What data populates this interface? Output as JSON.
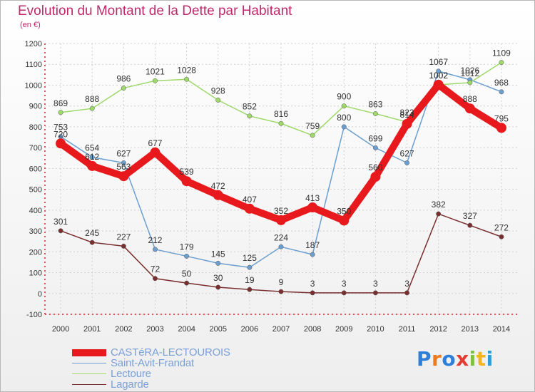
{
  "chart_data": {
    "type": "line",
    "title": "Evolution du Montant de la Dette par Habitant",
    "subtitle": "(en €)",
    "x": [
      "2000",
      "2001",
      "2002",
      "2003",
      "2004",
      "2005",
      "2006",
      "2007",
      "2008",
      "2009",
      "2010",
      "2011",
      "2012",
      "2013",
      "2014"
    ],
    "ylim": [
      -100,
      1200
    ],
    "yticks": [
      "-100",
      "0",
      "100",
      "200",
      "300",
      "400",
      "500",
      "600",
      "700",
      "800",
      "900",
      "1000",
      "1100",
      "1200"
    ],
    "grid": true,
    "legend_position": "bottom-left",
    "series": [
      {
        "name": "CASTéRA-LECTOUROIS",
        "color": "#e8191d",
        "width": 10,
        "values": [
          720,
          612,
          563,
          677,
          539,
          472,
          407,
          352,
          413,
          350,
          560,
          814,
          1002,
          888,
          795
        ],
        "labels": [
          "720",
          "612",
          "563",
          "677",
          "539",
          "472",
          "407",
          "352",
          "413",
          "350",
          "560",
          "814",
          "1002",
          "888",
          "795"
        ]
      },
      {
        "name": "Saint-Avit-Frandat",
        "color": "#6c9fd0",
        "width": 1.5,
        "values": [
          753,
          654,
          627,
          212,
          179,
          145,
          125,
          224,
          187,
          800,
          699,
          627,
          1067,
          1026,
          968
        ],
        "labels": [
          "753",
          "654",
          "627",
          "212",
          "179",
          "145",
          "125",
          "224",
          "187",
          "800",
          "699",
          "627",
          "1067",
          "1026",
          "968"
        ]
      },
      {
        "name": "Lectoure",
        "color": "#9ed96a",
        "width": 1.5,
        "values": [
          869,
          888,
          986,
          1021,
          1028,
          928,
          852,
          816,
          759,
          900,
          863,
          823,
          1002,
          1012,
          1109
        ],
        "labels": [
          "869",
          "888",
          "986",
          "1021",
          "1028",
          "928",
          "852",
          "816",
          "759",
          "900",
          "863",
          "823",
          "1002",
          "1012",
          "1109"
        ]
      },
      {
        "name": "Lagarde",
        "color": "#7a2f2f",
        "width": 1.5,
        "values": [
          301,
          245,
          227,
          72,
          50,
          30,
          19,
          9,
          3,
          3,
          3,
          3,
          382,
          327,
          272
        ],
        "labels": [
          "301",
          "245",
          "227",
          "72",
          "50",
          "30",
          "19",
          "9",
          "3",
          "3",
          "3",
          "3",
          "382",
          "327",
          "272"
        ]
      }
    ]
  },
  "logo": {
    "text": "Proxiti"
  }
}
